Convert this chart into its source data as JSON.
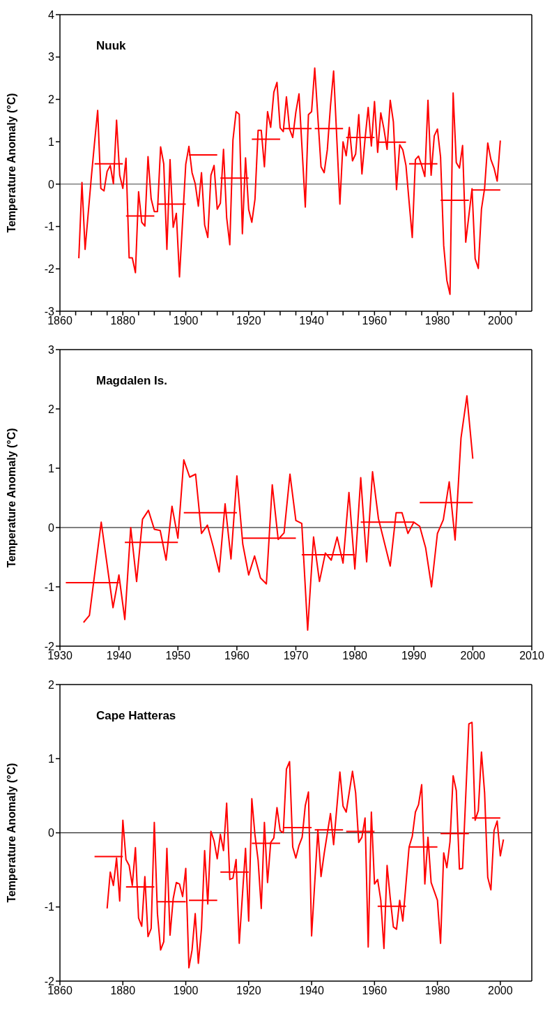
{
  "chart_data": [
    {
      "type": "line",
      "title": "Nuuk",
      "ylabel": "Temperature Anomaly (°C)",
      "xlim": [
        1860,
        2010
      ],
      "ylim": [
        -3,
        4
      ],
      "xticks": [
        1860,
        {
          "value": 1865,
          "label": null
        },
        {
          "value": 1870,
          "label": null
        },
        {
          "value": 1875,
          "label": null
        },
        1880,
        {
          "value": 1885,
          "label": null
        },
        {
          "value": 1890,
          "label": null
        },
        {
          "value": 1895,
          "label": null
        },
        1900,
        {
          "value": 1905,
          "label": null
        },
        {
          "value": 1910,
          "label": null
        },
        {
          "value": 1915,
          "label": null
        },
        1920,
        {
          "value": 1925,
          "label": null
        },
        {
          "value": 1930,
          "label": null
        },
        {
          "value": 1935,
          "label": null
        },
        1940,
        {
          "value": 1945,
          "label": null
        },
        {
          "value": 1950,
          "label": null
        },
        {
          "value": 1955,
          "label": null
        },
        1960,
        {
          "value": 1965,
          "label": null
        },
        {
          "value": 1970,
          "label": null
        },
        {
          "value": 1975,
          "label": null
        },
        1980,
        {
          "value": 1985,
          "label": null
        },
        {
          "value": 1990,
          "label": null
        },
        {
          "value": 1995,
          "label": null
        },
        2000,
        {
          "value": 2005,
          "label": null
        }
      ],
      "yticks": [
        -3,
        -2,
        -1,
        0,
        1,
        2,
        3,
        4
      ],
      "marker": "none",
      "line_style": "solid",
      "ref_lines": [
        {
          "axis": "y",
          "value": 0,
          "color": "#404040"
        }
      ],
      "series": [
        {
          "type": "line",
          "color": "#ff0000",
          "x": [
            1866,
            1867,
            1868,
            1870,
            1871,
            1872,
            1873,
            1874,
            1875,
            1876,
            1877,
            1878,
            1879,
            1880,
            1881,
            1882,
            1883,
            1884,
            1885,
            1886,
            1887,
            1888,
            1889,
            1890,
            1891,
            1892,
            1893,
            1894,
            1895,
            1896,
            1897,
            1898,
            1900,
            1901,
            1902,
            1903,
            1904,
            1905,
            1906,
            1907,
            1908,
            1909,
            1910,
            1911,
            1912,
            1913,
            1914,
            1915,
            1916,
            1917,
            1918,
            1919,
            1920,
            1921,
            1922,
            1923,
            1924,
            1925,
            1926,
            1927,
            1928,
            1929,
            1930,
            1931,
            1932,
            1933,
            1934,
            1935,
            1936,
            1938,
            1939,
            1940,
            1941,
            1943,
            1944,
            1945,
            1946,
            1947,
            1949,
            1950,
            1951,
            1952,
            1953,
            1954,
            1955,
            1956,
            1957,
            1958,
            1959,
            1960,
            1961,
            1962,
            1963,
            1964,
            1965,
            1966,
            1967,
            1968,
            1969,
            1970,
            1971,
            1972,
            1973,
            1974,
            1975,
            1976,
            1977,
            1978,
            1979,
            1980,
            1981,
            1982,
            1983,
            1984,
            1985,
            1986,
            1987,
            1988,
            1989,
            1991,
            1992,
            1993,
            1994,
            1995,
            1996,
            1997,
            1998,
            1999,
            2000
          ],
          "values": [
            -1.75,
            0.04,
            -1.54,
            0.18,
            0.98,
            1.74,
            -0.1,
            -0.16,
            0.3,
            0.44,
            0.01,
            1.51,
            0.21,
            -0.1,
            0.61,
            -1.74,
            -1.74,
            -2.09,
            -0.18,
            -0.9,
            -0.99,
            0.65,
            -0.35,
            -0.65,
            -0.65,
            0.88,
            0.48,
            -1.54,
            0.58,
            -1.02,
            -0.69,
            -2.19,
            0.47,
            0.89,
            0.27,
            0.01,
            -0.52,
            0.27,
            -0.96,
            -1.26,
            0.21,
            0.44,
            -0.59,
            -0.45,
            0.82,
            -0.79,
            -1.43,
            1.04,
            1.71,
            1.65,
            -1.17,
            0.62,
            -0.6,
            -0.9,
            -0.36,
            1.27,
            1.27,
            0.41,
            1.71,
            1.34,
            2.17,
            2.4,
            1.33,
            1.24,
            2.06,
            1.3,
            1.1,
            1.7,
            2.13,
            -0.54,
            1.64,
            1.71,
            2.74,
            0.41,
            0.27,
            0.81,
            1.84,
            2.67,
            -0.47,
            1.0,
            0.67,
            1.34,
            0.55,
            0.71,
            1.64,
            0.24,
            1.07,
            1.81,
            0.9,
            1.95,
            0.75,
            1.68,
            1.3,
            0.82,
            1.98,
            1.47,
            -0.13,
            0.93,
            0.81,
            0.44,
            -0.42,
            -1.26,
            0.58,
            0.66,
            0.44,
            0.18,
            1.98,
            0.21,
            1.14,
            1.3,
            0.64,
            -1.45,
            -2.27,
            -2.6,
            2.15,
            0.51,
            0.38,
            0.91,
            -1.37,
            -0.11,
            -1.76,
            -1.99,
            -0.59,
            -0.1,
            0.97,
            0.58,
            0.38,
            0.07,
            1.03
          ]
        },
        {
          "type": "line",
          "color": "#ff0000",
          "x": [
            1871,
            1880,
            1880.5,
            1881,
            1890,
            1890.5,
            1891,
            1900,
            1900.5,
            1901,
            1910,
            1910.5,
            1911,
            1920,
            1920.5,
            1921,
            1930,
            1930.5,
            1931,
            1940,
            1940.5,
            1941,
            1950,
            1950.5,
            1951,
            1960,
            1960.5,
            1961,
            1970,
            1970.5,
            1971,
            1980,
            1980.5,
            1981,
            1990,
            1990.5,
            1991,
            2000
          ],
          "values": [
            0.48,
            0.48,
            null,
            -0.75,
            -0.75,
            null,
            -0.47,
            -0.47,
            null,
            0.69,
            0.69,
            null,
            0.14,
            0.14,
            null,
            1.06,
            1.06,
            null,
            1.31,
            1.31,
            null,
            1.31,
            1.31,
            null,
            1.1,
            1.1,
            null,
            0.99,
            0.99,
            null,
            0.48,
            0.48,
            null,
            -0.38,
            -0.38,
            null,
            -0.14,
            -0.14
          ]
        }
      ]
    },
    {
      "type": "line",
      "title": "Magdalen Is.",
      "ylabel": "Temperature Anomaly (°C)",
      "xlim": [
        1930,
        2010
      ],
      "ylim": [
        -2,
        3
      ],
      "xticks": [
        1930,
        1940,
        1950,
        1960,
        1970,
        1980,
        1990,
        2000,
        2010
      ],
      "yticks": [
        -2,
        -1,
        0,
        1,
        2,
        3
      ],
      "marker": "none",
      "line_style": "solid",
      "ref_lines": [
        {
          "axis": "y",
          "value": 0,
          "color": "#000000"
        }
      ],
      "series": [
        {
          "type": "line",
          "color": "#ff0000",
          "x": [
            1934,
            1935,
            1937,
            1939,
            1940,
            1941,
            1942,
            1943,
            1944,
            1945,
            1946,
            1947,
            1948,
            1949,
            1950,
            1951,
            1952,
            1953,
            1954,
            1955,
            1956,
            1957,
            1958,
            1959,
            1960,
            1961,
            1962,
            1963,
            1964,
            1965,
            1966,
            1967,
            1968,
            1969,
            1970,
            1971,
            1972,
            1973,
            1974,
            1975,
            1976,
            1977,
            1978,
            1979,
            1980,
            1981,
            1982,
            1983,
            1984,
            1986,
            1987,
            1988,
            1989,
            1990,
            1991,
            1992,
            1993,
            1994,
            1995,
            1996,
            1997,
            1998,
            1999,
            2000
          ],
          "values": [
            -1.6,
            -1.48,
            0.09,
            -1.35,
            -0.8,
            -1.55,
            0.0,
            -0.91,
            0.14,
            0.29,
            -0.03,
            -0.05,
            -0.55,
            0.36,
            -0.18,
            1.14,
            0.85,
            0.9,
            -0.1,
            0.04,
            -0.33,
            -0.75,
            0.4,
            -0.53,
            0.87,
            -0.28,
            -0.8,
            -0.48,
            -0.85,
            -0.95,
            0.72,
            -0.2,
            -0.09,
            0.9,
            0.12,
            0.07,
            -1.73,
            -0.16,
            -0.91,
            -0.43,
            -0.55,
            -0.16,
            -0.6,
            0.59,
            -0.7,
            0.84,
            -0.58,
            0.94,
            0.15,
            -0.65,
            0.25,
            0.25,
            -0.1,
            0.09,
            0.02,
            -0.34,
            -1.0,
            -0.1,
            0.13,
            0.77,
            -0.21,
            1.51,
            2.22,
            1.16
          ]
        },
        {
          "type": "line",
          "color": "#ff0000",
          "x": [
            1931,
            1940,
            1940.5,
            1941,
            1950,
            1950.5,
            1951,
            1960,
            1960.5,
            1961,
            1970,
            1970.5,
            1971,
            1980,
            1980.5,
            1981,
            1990,
            1990.5,
            1991,
            2000
          ],
          "values": [
            -0.93,
            -0.93,
            null,
            -0.25,
            -0.25,
            null,
            0.25,
            0.25,
            null,
            -0.18,
            -0.18,
            null,
            -0.46,
            -0.46,
            null,
            0.09,
            0.09,
            null,
            0.42,
            0.42
          ]
        }
      ]
    },
    {
      "type": "line",
      "title": "Cape Hatteras",
      "ylabel": "Temperature Anomaly (°C)",
      "xlim": [
        1860,
        2010
      ],
      "ylim": [
        -2,
        2
      ],
      "xticks": [
        1860,
        1880,
        1900,
        1920,
        1940,
        1960,
        1980,
        2000
      ],
      "yticks": [
        -2,
        -1,
        0,
        1,
        2
      ],
      "marker": "none",
      "line_style": "solid",
      "ref_lines": [
        {
          "axis": "y",
          "value": 0,
          "color": "#000000"
        }
      ],
      "series": [
        {
          "type": "line",
          "color": "#ff0000",
          "x": [
            1875,
            1876,
            1877,
            1878,
            1879,
            1880,
            1881,
            1882,
            1883,
            1884,
            1885,
            1886,
            1887,
            1888,
            1889,
            1890,
            1891,
            1892,
            1893,
            1894,
            1895,
            1896,
            1897,
            1898,
            1899,
            1900,
            1901,
            1902,
            1903,
            1904,
            1905,
            1906,
            1907,
            1908,
            1909,
            1910,
            1911,
            1912,
            1913,
            1914,
            1915,
            1916,
            1917,
            1919,
            1920,
            1921,
            1922,
            1923,
            1924,
            1925,
            1926,
            1927,
            1928,
            1929,
            1930,
            1931,
            1932,
            1933,
            1934,
            1935,
            1936,
            1937,
            1938,
            1939,
            1940,
            1942,
            1943,
            1944,
            1946,
            1947,
            1949,
            1950,
            1951,
            1953,
            1954,
            1955,
            1956,
            1957,
            1958,
            1959,
            1960,
            1961,
            1962,
            1963,
            1964,
            1965,
            1966,
            1967,
            1968,
            1969,
            1971,
            1972,
            1973,
            1974,
            1975,
            1976,
            1977,
            1978,
            1979,
            1980,
            1981,
            1982,
            1983,
            1984,
            1985,
            1986,
            1987,
            1988,
            1990,
            1991,
            1992,
            1993,
            1994,
            1995,
            1996,
            1997,
            1998,
            1999,
            2000,
            2001
          ],
          "values": [
            -1.02,
            -0.53,
            -0.71,
            -0.34,
            -0.92,
            0.17,
            -0.36,
            -0.44,
            -0.71,
            -0.2,
            -1.15,
            -1.26,
            -0.59,
            -1.4,
            -1.29,
            0.14,
            -1.09,
            -1.58,
            -1.47,
            -0.21,
            -1.38,
            -0.89,
            -0.67,
            -0.69,
            -0.86,
            -0.48,
            -1.82,
            -1.58,
            -1.09,
            -1.76,
            -1.29,
            -0.24,
            -0.96,
            0.02,
            -0.11,
            -0.35,
            -0.02,
            -0.24,
            0.4,
            -0.63,
            -0.61,
            -0.36,
            -1.49,
            -0.21,
            -1.19,
            0.46,
            -0.03,
            -0.37,
            -1.02,
            0.14,
            -0.67,
            -0.13,
            -0.07,
            0.34,
            0.03,
            0.0,
            0.86,
            0.96,
            -0.19,
            -0.34,
            -0.17,
            -0.06,
            0.37,
            0.55,
            -1.39,
            0.04,
            -0.59,
            -0.28,
            0.26,
            -0.16,
            0.82,
            0.36,
            0.28,
            0.83,
            0.54,
            -0.13,
            -0.06,
            0.2,
            -1.54,
            0.28,
            -0.69,
            -0.63,
            -0.91,
            -1.56,
            -0.44,
            -0.88,
            -1.27,
            -1.3,
            -0.91,
            -1.19,
            -0.19,
            -0.05,
            0.28,
            0.38,
            0.65,
            -0.69,
            -0.06,
            -0.67,
            -0.79,
            -0.91,
            -1.49,
            -0.27,
            -0.47,
            -0.12,
            0.77,
            0.57,
            -0.49,
            -0.48,
            1.47,
            1.49,
            0.17,
            0.3,
            1.09,
            0.54,
            -0.6,
            -0.77,
            0.03,
            0.16,
            -0.31,
            -0.09
          ]
        },
        {
          "type": "line",
          "color": "#ff0000",
          "x": [
            1871,
            1880,
            1880.5,
            1881,
            1890,
            1890.5,
            1891,
            1900,
            1900.5,
            1901,
            1910,
            1910.5,
            1911,
            1920,
            1920.5,
            1921,
            1930,
            1930.5,
            1931,
            1940,
            1940.5,
            1941,
            1950,
            1950.5,
            1951,
            1960,
            1960.5,
            1961,
            1970,
            1970.5,
            1971,
            1980,
            1980.5,
            1981,
            1990,
            1990.5,
            1991,
            2000
          ],
          "values": [
            -0.32,
            -0.32,
            null,
            -0.73,
            -0.73,
            null,
            -0.93,
            -0.93,
            null,
            -0.91,
            -0.91,
            null,
            -0.53,
            -0.53,
            null,
            -0.14,
            -0.14,
            null,
            0.07,
            0.07,
            null,
            0.04,
            0.04,
            null,
            0.02,
            0.02,
            null,
            -0.99,
            -0.99,
            null,
            -0.19,
            -0.19,
            null,
            -0.01,
            -0.01,
            null,
            0.2,
            0.2
          ]
        }
      ]
    }
  ]
}
